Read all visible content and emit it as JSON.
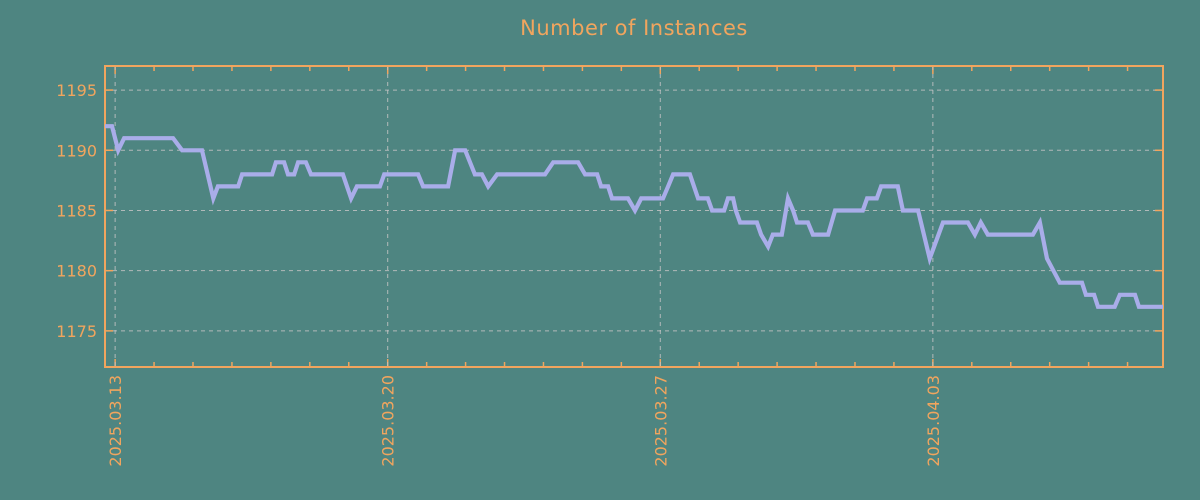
{
  "colors": {
    "background": "#4e8581",
    "accent_orange": "#f1a55e",
    "series_line": "#a9ade9",
    "gridline": "#c4c4c4"
  },
  "chart_data": {
    "type": "line",
    "title": "Number of Instances",
    "xlabel": "",
    "ylabel": "",
    "grid": "dashed",
    "legend": "none",
    "x_axis": {
      "tick_labels": [
        "2025.03.13",
        "2025.03.20",
        "2025.03.27",
        "2025.04.03"
      ],
      "tick_days": [
        0,
        7,
        14,
        21
      ],
      "minor_tick_every_days": 1,
      "range_days": [
        -0.26,
        26.91
      ]
    },
    "y_axis": {
      "tick_labels": [
        "1175",
        "1180",
        "1185",
        "1190",
        "1195"
      ],
      "ticks": [
        1175,
        1180,
        1185,
        1190,
        1195
      ],
      "range": [
        1172,
        1197
      ]
    },
    "series_name": "instances",
    "points": [
      [
        -0.26,
        1192
      ],
      [
        -0.08,
        1192
      ],
      [
        0.08,
        1190
      ],
      [
        0.23,
        1191
      ],
      [
        1.49,
        1191
      ],
      [
        1.72,
        1190
      ],
      [
        2.23,
        1190
      ],
      [
        2.52,
        1186
      ],
      [
        2.64,
        1187
      ],
      [
        3.16,
        1187
      ],
      [
        3.26,
        1188
      ],
      [
        4.03,
        1188
      ],
      [
        4.13,
        1189
      ],
      [
        4.34,
        1189
      ],
      [
        4.44,
        1188
      ],
      [
        4.6,
        1188
      ],
      [
        4.7,
        1189
      ],
      [
        4.9,
        1189
      ],
      [
        5.03,
        1188
      ],
      [
        5.85,
        1188
      ],
      [
        6.06,
        1186
      ],
      [
        6.21,
        1187
      ],
      [
        6.8,
        1187
      ],
      [
        6.91,
        1188
      ],
      [
        7.78,
        1188
      ],
      [
        7.91,
        1187
      ],
      [
        8.55,
        1187
      ],
      [
        8.73,
        1190
      ],
      [
        8.99,
        1190
      ],
      [
        9.24,
        1188
      ],
      [
        9.42,
        1188
      ],
      [
        9.58,
        1187
      ],
      [
        9.81,
        1188
      ],
      [
        11.04,
        1188
      ],
      [
        11.25,
        1189
      ],
      [
        11.89,
        1189
      ],
      [
        12.07,
        1188
      ],
      [
        12.38,
        1188
      ],
      [
        12.48,
        1187
      ],
      [
        12.66,
        1187
      ],
      [
        12.76,
        1186
      ],
      [
        13.17,
        1186
      ],
      [
        13.35,
        1185
      ],
      [
        13.51,
        1186
      ],
      [
        14.07,
        1186
      ],
      [
        14.2,
        1187
      ],
      [
        14.33,
        1188
      ],
      [
        14.76,
        1188
      ],
      [
        14.97,
        1186
      ],
      [
        15.22,
        1186
      ],
      [
        15.33,
        1185
      ],
      [
        15.64,
        1185
      ],
      [
        15.74,
        1186
      ],
      [
        15.87,
        1186
      ],
      [
        15.94,
        1185
      ],
      [
        16.05,
        1184
      ],
      [
        16.48,
        1184
      ],
      [
        16.59,
        1183
      ],
      [
        16.77,
        1182
      ],
      [
        16.89,
        1183
      ],
      [
        17.12,
        1183
      ],
      [
        17.28,
        1186
      ],
      [
        17.41,
        1185
      ],
      [
        17.51,
        1184
      ],
      [
        17.79,
        1184
      ],
      [
        17.92,
        1183
      ],
      [
        18.31,
        1183
      ],
      [
        18.49,
        1185
      ],
      [
        19.2,
        1185
      ],
      [
        19.31,
        1186
      ],
      [
        19.56,
        1186
      ],
      [
        19.67,
        1187
      ],
      [
        20.1,
        1187
      ],
      [
        20.23,
        1185
      ],
      [
        20.62,
        1185
      ],
      [
        20.77,
        1183
      ],
      [
        20.92,
        1181
      ],
      [
        21.26,
        1184
      ],
      [
        21.9,
        1184
      ],
      [
        22.08,
        1183
      ],
      [
        22.23,
        1184
      ],
      [
        22.41,
        1183
      ],
      [
        23.57,
        1183
      ],
      [
        23.75,
        1184
      ],
      [
        23.93,
        1181
      ],
      [
        24.26,
        1179
      ],
      [
        24.83,
        1179
      ],
      [
        24.93,
        1178
      ],
      [
        25.14,
        1178
      ],
      [
        25.24,
        1177
      ],
      [
        25.67,
        1177
      ],
      [
        25.8,
        1178
      ],
      [
        26.19,
        1178
      ],
      [
        26.29,
        1177
      ],
      [
        26.91,
        1177
      ]
    ]
  }
}
